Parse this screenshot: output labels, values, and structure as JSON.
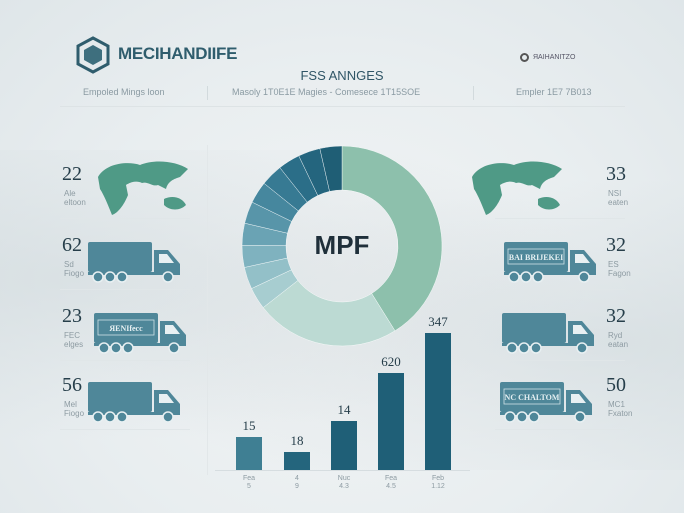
{
  "header": {
    "brand": "MECIHANDIIFE",
    "right_label": "ЯAIHANITZO",
    "subtitle": "FSS ANNGES",
    "meta": [
      "Empoled Mings loon",
      "Masoly 1T0E1E Magies - Comesece 1T15SOE",
      "Empler 1E7 7B013"
    ]
  },
  "donut": {
    "center_label": "MPF",
    "colors": {
      "green": "#8dc0ac",
      "light": "#bcdad3",
      "dark": "#1f5e75"
    }
  },
  "left_items": [
    {
      "icon": "world-map-icon",
      "value": "22",
      "label": "Ale",
      "sublabel": "eltoon"
    },
    {
      "icon": "truck-icon",
      "value": "62",
      "label": "Sd",
      "sublabel": "Fiogo"
    },
    {
      "icon": "truck-icon",
      "value": "23",
      "label": "FEC",
      "sublabel": "elges",
      "truck_text": "ЯЕNIfecc"
    },
    {
      "icon": "truck-icon",
      "value": "56",
      "label": "Mel",
      "sublabel": "Fiogo"
    }
  ],
  "right_items": [
    {
      "icon": "world-map-icon",
      "value": "33",
      "label": "NSI",
      "sublabel": "eaten"
    },
    {
      "icon": "truck-icon",
      "value": "32",
      "label": "ES",
      "sublabel": "Fagon",
      "truck_text": "BAI BRIJEKEI"
    },
    {
      "icon": "truck-icon",
      "value": "32",
      "label": "Ryd",
      "sublabel": "eatan"
    },
    {
      "icon": "truck-icon",
      "value": "50",
      "label": "MC1",
      "sublabel": "Fxaton",
      "truck_text": "NC CHALTOM"
    }
  ],
  "chart_data": {
    "type": "bar",
    "categories": [
      "Fea",
      "4",
      "Nuc",
      "Fea",
      "Feb"
    ],
    "sublabels": [
      "5",
      "9",
      "4.3",
      "4.5",
      "1.12"
    ],
    "value_labels": [
      "15",
      "18",
      "14",
      "620",
      "347"
    ],
    "relative_heights": [
      0.24,
      0.13,
      0.36,
      0.71,
      1.0
    ],
    "colors": [
      "#3f7f93",
      "#24657d",
      "#1f5f77",
      "#1f5f77",
      "#1f5f77"
    ]
  }
}
